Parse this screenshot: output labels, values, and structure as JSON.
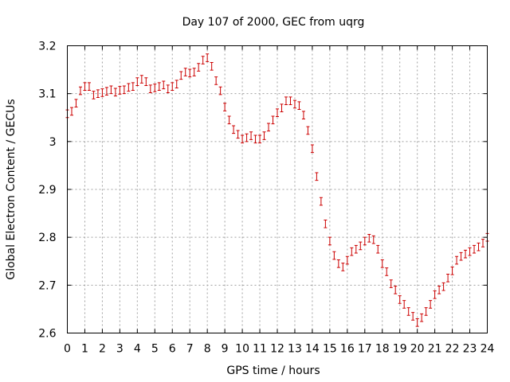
{
  "chart_data": {
    "type": "scatter",
    "title": "Day 107 of 2000, GEC from uqrg",
    "xlabel": "GPS time / hours",
    "ylabel": "Global Electron Content / GECUs",
    "xlim": [
      0,
      24
    ],
    "ylim": [
      2.6,
      3.2
    ],
    "xticks": [
      0,
      1,
      2,
      3,
      4,
      5,
      6,
      7,
      8,
      9,
      10,
      11,
      12,
      13,
      14,
      15,
      16,
      17,
      18,
      19,
      20,
      21,
      22,
      23,
      24
    ],
    "yticks": [
      2.6,
      2.7,
      2.8,
      2.9,
      3.0,
      3.1,
      3.2
    ],
    "ytick_labels": [
      "2.6",
      "2.7",
      "2.8",
      "2.9",
      "3",
      "3.1",
      "3.2"
    ],
    "grid": true,
    "series_color": "#cc0000",
    "error_half_width": 0.008,
    "points": [
      [
        0.0,
        3.058
      ],
      [
        0.25,
        3.063
      ],
      [
        0.5,
        3.08
      ],
      [
        0.75,
        3.106
      ],
      [
        1.0,
        3.115
      ],
      [
        1.25,
        3.115
      ],
      [
        1.5,
        3.097
      ],
      [
        1.75,
        3.1
      ],
      [
        2.0,
        3.102
      ],
      [
        2.25,
        3.105
      ],
      [
        2.5,
        3.108
      ],
      [
        2.75,
        3.103
      ],
      [
        3.0,
        3.107
      ],
      [
        3.25,
        3.108
      ],
      [
        3.5,
        3.113
      ],
      [
        3.75,
        3.115
      ],
      [
        4.0,
        3.125
      ],
      [
        4.25,
        3.13
      ],
      [
        4.5,
        3.125
      ],
      [
        4.75,
        3.11
      ],
      [
        5.0,
        3.112
      ],
      [
        5.25,
        3.115
      ],
      [
        5.5,
        3.118
      ],
      [
        5.75,
        3.11
      ],
      [
        6.0,
        3.115
      ],
      [
        6.25,
        3.12
      ],
      [
        6.5,
        3.138
      ],
      [
        6.75,
        3.145
      ],
      [
        7.0,
        3.143
      ],
      [
        7.25,
        3.145
      ],
      [
        7.5,
        3.155
      ],
      [
        7.75,
        3.17
      ],
      [
        8.0,
        3.175
      ],
      [
        8.25,
        3.157
      ],
      [
        8.5,
        3.127
      ],
      [
        8.75,
        3.106
      ],
      [
        9.0,
        3.072
      ],
      [
        9.25,
        3.045
      ],
      [
        9.5,
        3.025
      ],
      [
        9.75,
        3.015
      ],
      [
        10.0,
        3.005
      ],
      [
        10.25,
        3.008
      ],
      [
        10.5,
        3.012
      ],
      [
        10.75,
        3.005
      ],
      [
        11.0,
        3.005
      ],
      [
        11.25,
        3.012
      ],
      [
        11.5,
        3.03
      ],
      [
        11.75,
        3.045
      ],
      [
        12.0,
        3.06
      ],
      [
        12.25,
        3.07
      ],
      [
        12.5,
        3.085
      ],
      [
        12.75,
        3.085
      ],
      [
        13.0,
        3.078
      ],
      [
        13.25,
        3.075
      ],
      [
        13.5,
        3.055
      ],
      [
        13.75,
        3.023
      ],
      [
        14.0,
        2.985
      ],
      [
        14.25,
        2.927
      ],
      [
        14.5,
        2.875
      ],
      [
        14.75,
        2.828
      ],
      [
        15.0,
        2.792
      ],
      [
        15.25,
        2.762
      ],
      [
        15.5,
        2.745
      ],
      [
        15.75,
        2.738
      ],
      [
        16.0,
        2.752
      ],
      [
        16.25,
        2.77
      ],
      [
        16.5,
        2.775
      ],
      [
        16.75,
        2.782
      ],
      [
        17.0,
        2.792
      ],
      [
        17.25,
        2.798
      ],
      [
        17.5,
        2.795
      ],
      [
        17.75,
        2.775
      ],
      [
        18.0,
        2.745
      ],
      [
        18.25,
        2.728
      ],
      [
        18.5,
        2.703
      ],
      [
        18.75,
        2.69
      ],
      [
        19.0,
        2.67
      ],
      [
        19.25,
        2.66
      ],
      [
        19.5,
        2.645
      ],
      [
        19.75,
        2.635
      ],
      [
        20.0,
        2.622
      ],
      [
        20.25,
        2.632
      ],
      [
        20.5,
        2.645
      ],
      [
        20.75,
        2.66
      ],
      [
        21.0,
        2.68
      ],
      [
        21.25,
        2.69
      ],
      [
        21.5,
        2.697
      ],
      [
        21.75,
        2.715
      ],
      [
        22.0,
        2.73
      ],
      [
        22.25,
        2.752
      ],
      [
        22.5,
        2.76
      ],
      [
        22.75,
        2.765
      ],
      [
        23.0,
        2.77
      ],
      [
        23.25,
        2.775
      ],
      [
        23.5,
        2.78
      ],
      [
        23.75,
        2.788
      ],
      [
        24.0,
        2.8
      ]
    ]
  }
}
